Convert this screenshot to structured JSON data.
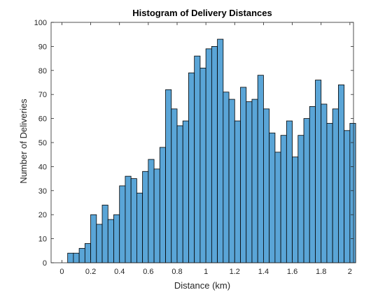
{
  "colors": {
    "bar_fill": "#5aa5d7",
    "bar_edge": "#000000",
    "axis": "#262626",
    "background": "#ffffff"
  },
  "chart_data": {
    "type": "bar",
    "subtype": "histogram",
    "title": "Histogram of Delivery Distances",
    "xlabel": "Distance (km)",
    "ylabel": "Number of Deliveries",
    "xlim": [
      -0.075,
      2.025
    ],
    "ylim": [
      0,
      100
    ],
    "grid": false,
    "legend": "none",
    "x_ticks": [
      0,
      0.2,
      0.4,
      0.6,
      0.8,
      1,
      1.2,
      1.4,
      1.6,
      1.8,
      2
    ],
    "x_tick_labels": [
      "0",
      "0.2",
      "0.4",
      "0.6",
      "0.8",
      "1",
      "1.2",
      "1.4",
      "1.6",
      "1.8",
      "2"
    ],
    "y_ticks": [
      0,
      10,
      20,
      30,
      40,
      50,
      60,
      70,
      80,
      90,
      100
    ],
    "y_tick_labels": [
      "0",
      "10",
      "20",
      "30",
      "40",
      "50",
      "60",
      "70",
      "80",
      "90",
      "100"
    ],
    "bin_width": 0.04,
    "bin_edges_start": 0.04,
    "values": [
      4,
      4,
      6,
      8,
      20,
      16,
      24,
      18,
      20,
      32,
      36,
      35,
      29,
      38,
      43,
      39,
      48,
      72,
      64,
      57,
      59,
      79,
      86,
      81,
      89,
      90,
      93,
      71,
      68,
      59,
      73,
      67,
      68,
      78,
      64,
      54,
      46,
      53,
      59,
      44,
      53,
      60,
      65,
      76,
      66,
      58,
      64,
      74,
      55,
      58
    ]
  }
}
